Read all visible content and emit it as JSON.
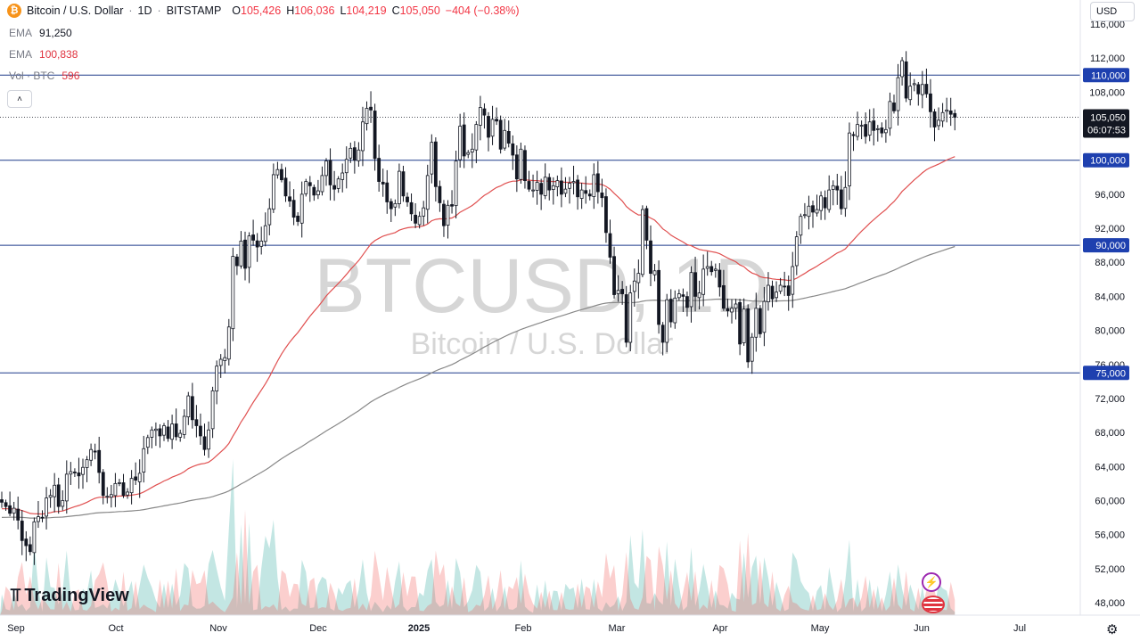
{
  "header": {
    "symbol_title": "Bitcoin / U.S. Dollar",
    "interval": "1D",
    "exchange": "BITSTAMP",
    "open_label": "O",
    "open": "105,426",
    "high_label": "H",
    "high": "106,036",
    "low_label": "L",
    "low": "104,219",
    "close_label": "C",
    "close": "105,050",
    "change": "−404 (−0.38%)"
  },
  "indicators": [
    {
      "name": "EMA",
      "value": "91,250"
    },
    {
      "name": "EMA",
      "value": "100,838"
    },
    {
      "name": "Vol · BTC",
      "value": "596"
    }
  ],
  "currency_button": "USD",
  "collapse_glyph": "˄",
  "watermark": {
    "symbol": "BTCUSD, 1D",
    "description": "Bitcoin / U.S. Dollar"
  },
  "logo_text": "TradingView",
  "icons": [
    "btc-logo-icon",
    "collapse-icon",
    "gear-icon",
    "tv-logo-icon",
    "replay-badge-icon",
    "us-flag-icon",
    "dropdown-icon"
  ],
  "chart_data": {
    "type": "candlestick",
    "y_axis_labels": [
      "48,000",
      "52,000",
      "56,000",
      "60,000",
      "64,000",
      "68,000",
      "72,000",
      "76,000",
      "80,000",
      "84,000",
      "88,000",
      "92,000",
      "96,000",
      "100,000",
      "104,000",
      "108,000",
      "112,000",
      "116,000"
    ],
    "ylim": [
      46000,
      118500
    ],
    "x_axis_labels": [
      "Sep",
      "Oct",
      "Nov",
      "Dec",
      "2025",
      "Feb",
      "Mar",
      "Apr",
      "May",
      "Jun",
      "Jul"
    ],
    "horizontal_levels": [
      {
        "value": 110000,
        "label": "110,000"
      },
      {
        "value": 100000,
        "label": "100,000"
      },
      {
        "value": 90000,
        "label": "90,000"
      },
      {
        "value": 75000,
        "label": "75,000"
      }
    ],
    "last_price": {
      "value": 105050,
      "label": "105,050",
      "countdown": "06:07:53"
    },
    "colors": {
      "up": "#089981",
      "down": "#f23645",
      "ema_fast": "#e04f4f",
      "ema_slow": "#888888",
      "level": "#1e3a8a",
      "price_tag": "#131722"
    },
    "closes": [
      59800,
      59300,
      58500,
      59100,
      57700,
      55300,
      54700,
      54000,
      57500,
      58100,
      58000,
      60300,
      60600,
      61800,
      59300,
      60000,
      63100,
      63400,
      63300,
      62900,
      63900,
      64800,
      66000,
      65700,
      63300,
      60600,
      60500,
      60700,
      62000,
      62100,
      60600,
      61000,
      62600,
      62400,
      63200,
      66100,
      67400,
      68300,
      68400,
      67600,
      68800,
      67300,
      69000,
      67500,
      67900,
      69900,
      72300,
      69500,
      68800,
      67600,
      66000,
      68300,
      72900,
      75800,
      76600,
      76800,
      80400,
      88700,
      87600,
      90500,
      87300,
      91100,
      90600,
      89800,
      90500,
      92300,
      94300,
      98300,
      98900,
      97700,
      95800,
      95200,
      93300,
      92800,
      96000,
      97500,
      97000,
      95900,
      96400,
      98200,
      99900,
      97100,
      96600,
      97800,
      98500,
      100100,
      101400,
      100000,
      101200,
      104500,
      106100,
      105900,
      100200,
      97500,
      97200,
      95100,
      94300,
      94900,
      98700,
      95800,
      95100,
      93700,
      92600,
      93400,
      94400,
      98200,
      102100,
      96900,
      95000,
      92300,
      94700,
      94600,
      99900,
      104000,
      100500,
      100900,
      101300,
      104200,
      106200,
      105300,
      102700,
      104800,
      104600,
      101300,
      103500,
      102000,
      100600,
      97800,
      101300,
      97600,
      96600,
      96500,
      97400,
      96000,
      98000,
      96500,
      97000,
      97600,
      96000,
      96600,
      97300,
      97500,
      95700,
      96500,
      96100,
      95800,
      98300,
      96300,
      95600,
      91500,
      88600,
      84200,
      84700,
      84300,
      78600,
      84400,
      85800,
      86700,
      94200,
      90600,
      86700,
      87000,
      80700,
      78600,
      83600,
      81000,
      83800,
      84300,
      84000,
      82700,
      86800,
      84000,
      84400,
      87200,
      87500,
      86900,
      87200,
      85100,
      82600,
      82300,
      82600,
      83100,
      78400,
      82500,
      76300,
      79200,
      82600,
      79600,
      83400,
      85300,
      83700,
      84500,
      85300,
      85100,
      84100,
      87500,
      91000,
      93400,
      93600,
      94600,
      93900,
      94200,
      95800,
      94400,
      96500,
      97000,
      96500,
      94300,
      96800,
      103200,
      102900,
      104200,
      104100,
      102800,
      104500,
      103500,
      103700,
      103200,
      103600,
      106900,
      105800,
      109700,
      111700,
      107300,
      108700,
      109000,
      107800,
      108900,
      107800,
      105700,
      103900,
      104700,
      105600,
      105900,
      105400,
      105050
    ],
    "ema_fast_start": 59000,
    "ema_fast_period": 50,
    "ema_slow_start": 58000,
    "ema_slow_period": 200,
    "volume_max": 100
  }
}
